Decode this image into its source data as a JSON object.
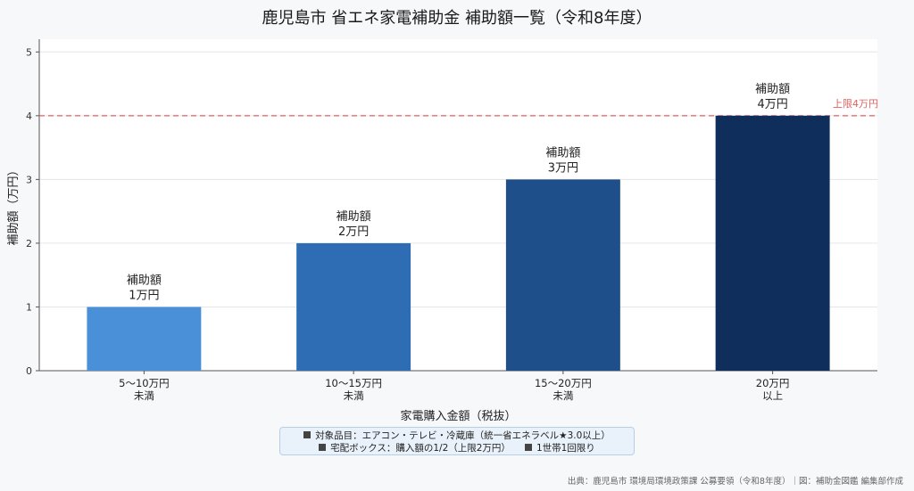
{
  "title": "鹿児島市 省エネ家電補助金 補助額一覧（令和8年度）",
  "chart_data": {
    "type": "bar",
    "categories": [
      [
        "5〜10万円",
        "未満"
      ],
      [
        "10〜15万円",
        "未満"
      ],
      [
        "15〜20万円",
        "未満"
      ],
      [
        "20万円",
        "以上"
      ]
    ],
    "values": [
      1,
      2,
      3,
      4
    ],
    "bar_labels": [
      [
        "補助額",
        "1万円"
      ],
      [
        "補助額",
        "2万円"
      ],
      [
        "補助額",
        "3万円"
      ],
      [
        "補助額",
        "4万円"
      ]
    ],
    "colors": [
      "#4a90d9",
      "#2e6db4",
      "#1e4f8a",
      "#0f2e5c"
    ],
    "xlabel": "家電購入金額（税抜）",
    "ylabel": "補助額（万円）",
    "ylim": [
      0,
      5.2
    ],
    "yticks": [
      0,
      1,
      2,
      3,
      4,
      5
    ],
    "grid": true,
    "reference_line": {
      "value": 4,
      "label": "上限4万円",
      "color": "#e06060",
      "style": "dashed"
    }
  },
  "notes": {
    "line1": "対象品目：エアコン・テレビ・冷蔵庫（統一省エネラベル★3.0以上）",
    "line2a": "宅配ボックス：購入額の1/2（上限2万円）",
    "line2b": "1世帯1回限り"
  },
  "source": "出典：鹿児島市 環境局環境政策課 公募要領（令和8年度）｜図：補助金図鑑 編集部作成"
}
